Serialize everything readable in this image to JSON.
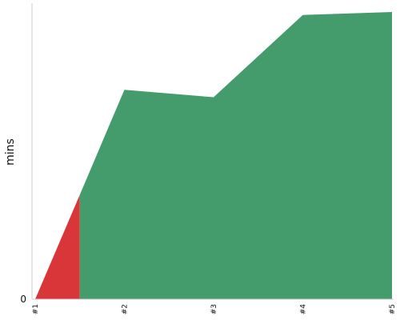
{
  "chart_data": {
    "type": "area",
    "title": "",
    "xlabel": "",
    "ylabel": "mins",
    "categories": [
      "#1",
      "#2",
      "#3",
      "#4",
      "#5"
    ],
    "y_tick_labels": [
      "0"
    ],
    "ylim": [
      0,
      10
    ],
    "grid": false,
    "legend": "none",
    "series": [
      {
        "color": "#d9363a",
        "points": [
          {
            "x": 1,
            "y": 0
          },
          {
            "x": 1.5,
            "y": 3.49
          }
        ]
      },
      {
        "color": "#449c6d",
        "points": [
          {
            "x": 1.5,
            "y": 3.49
          },
          {
            "x": 2,
            "y": 7.0
          },
          {
            "x": 3,
            "y": 6.75
          },
          {
            "x": 4,
            "y": 9.5
          },
          {
            "x": 5,
            "y": 9.6
          }
        ]
      }
    ]
  }
}
